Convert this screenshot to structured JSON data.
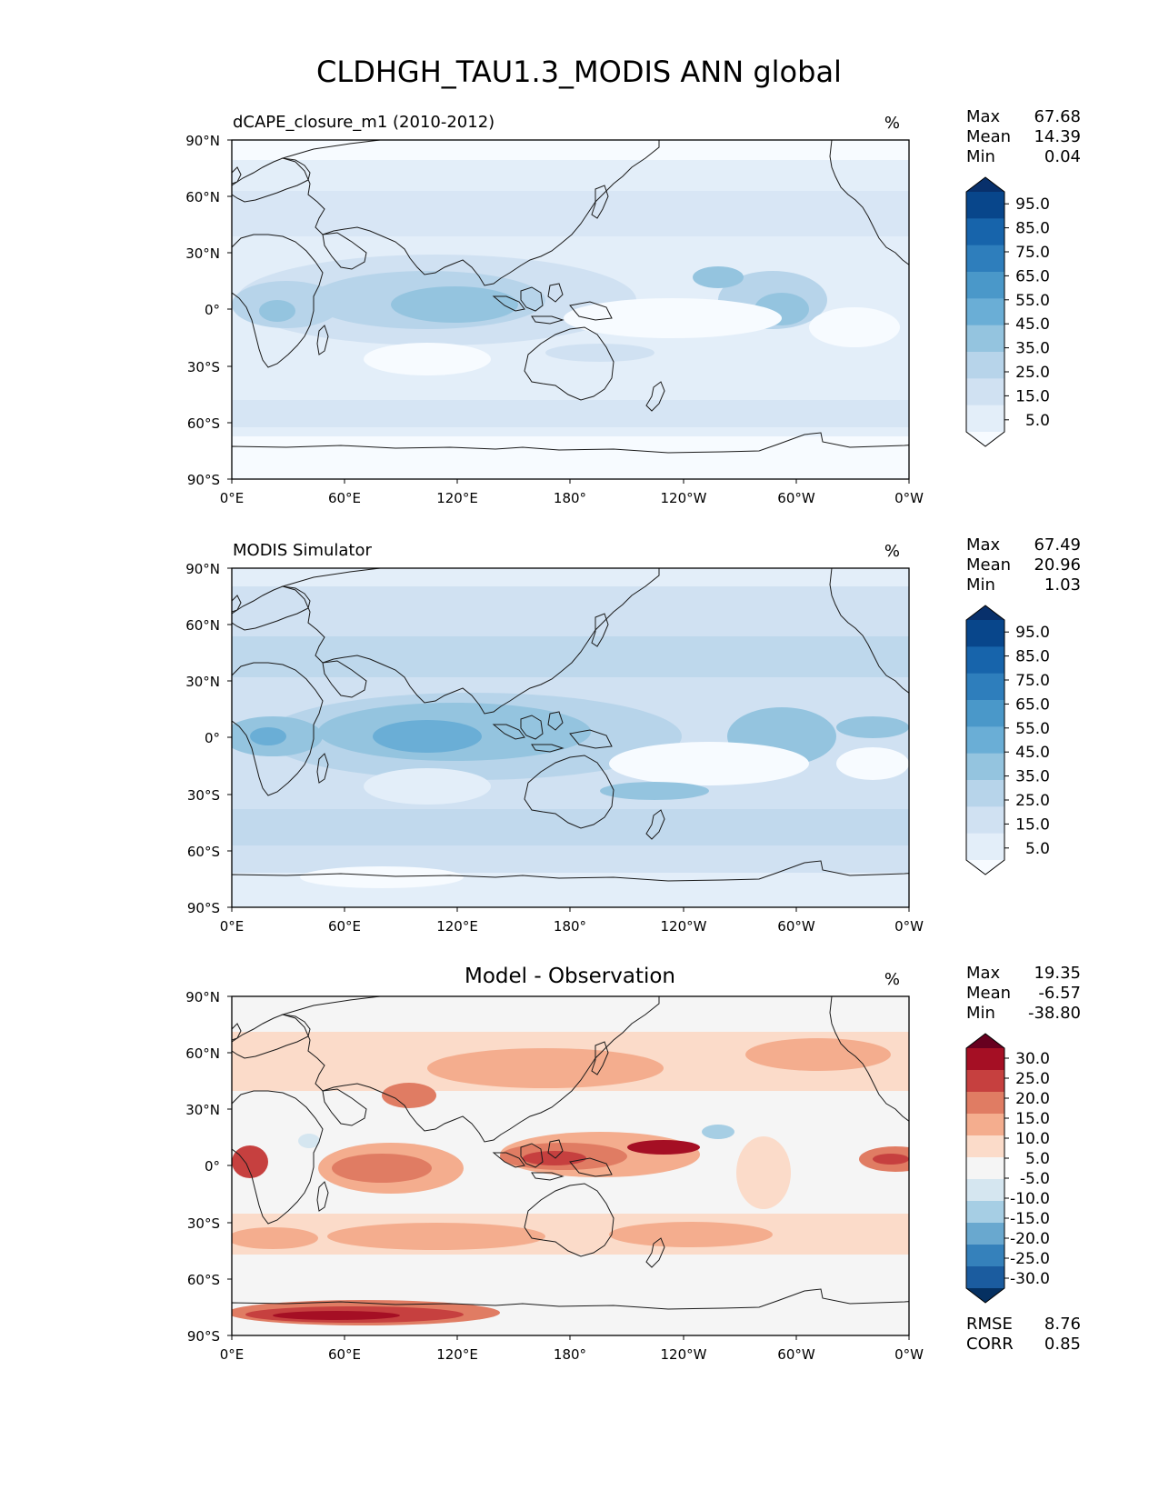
{
  "title": "CLDHGH_TAU1.3_MODIS ANN global",
  "lat_ticks": [
    "90°N",
    "60°N",
    "30°N",
    "0°",
    "30°S",
    "60°S",
    "90°S"
  ],
  "lon_ticks": [
    "0°E",
    "60°E",
    "120°E",
    "180°",
    "120°W",
    "60°W",
    "0°W"
  ],
  "seq_levels": [
    "95.0",
    "85.0",
    "75.0",
    "65.0",
    "55.0",
    "45.0",
    "35.0",
    "25.0",
    "15.0",
    "5.0"
  ],
  "seq_colors": [
    "#f7fbff",
    "#e3eef9",
    "#d0e1f2",
    "#b7d4ea",
    "#94c4df",
    "#6aaed6",
    "#4a98c9",
    "#2e7ebc",
    "#1764ab",
    "#08468b",
    "#08306b"
  ],
  "diff_levels": [
    "30.0",
    "25.0",
    "20.0",
    "15.0",
    "10.0",
    "5.0",
    "-5.0",
    "-10.0",
    "-15.0",
    "-20.0",
    "-25.0",
    "-30.0"
  ],
  "diff_colors": [
    "#67001f",
    "#a50f24",
    "#c6403f",
    "#e07c63",
    "#f4ad8e",
    "#fbdbc9",
    "#f5f5f5",
    "#d5e6f0",
    "#a6cee4",
    "#69a8cf",
    "#3581bb",
    "#1b5c9f",
    "#053061"
  ],
  "panels": [
    {
      "id": "test",
      "title": "dCAPE_closure_m1 (2010-2012)",
      "units": "%",
      "stats": [
        {
          "label": "Max",
          "value": "67.68"
        },
        {
          "label": "Mean",
          "value": "14.39"
        },
        {
          "label": "Min",
          "value": "0.04"
        }
      ]
    },
    {
      "id": "ref",
      "title": "MODIS Simulator",
      "units": "%",
      "stats": [
        {
          "label": "Max",
          "value": "67.49"
        },
        {
          "label": "Mean",
          "value": "20.96"
        },
        {
          "label": "Min",
          "value": "1.03"
        }
      ]
    },
    {
      "id": "diff",
      "title": "Model - Observation",
      "units": "%",
      "stats": [
        {
          "label": "Max",
          "value": "19.35"
        },
        {
          "label": "Mean",
          "value": "-6.57"
        },
        {
          "label": "Min",
          "value": "-38.80"
        }
      ],
      "extra_stats": [
        {
          "label": "RMSE",
          "value": "8.76"
        },
        {
          "label": "CORR",
          "value": "0.85"
        }
      ]
    }
  ]
}
